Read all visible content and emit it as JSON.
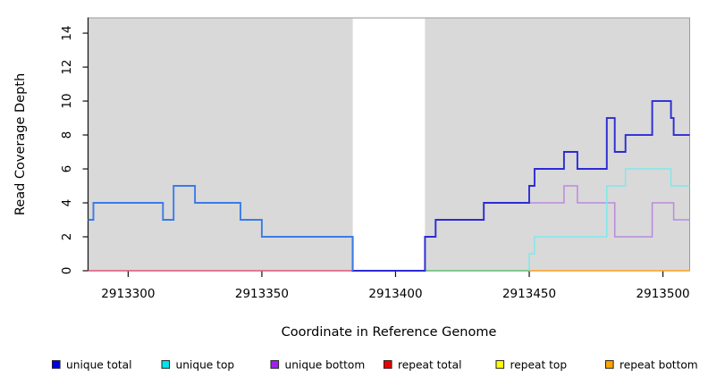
{
  "chart_data": {
    "type": "line",
    "subtype": "step-coverage",
    "title": "",
    "xlabel": "Coordinate in Reference Genome",
    "ylabel": "Read Coverage Depth",
    "xlim": [
      2913285,
      2913510
    ],
    "ylim": [
      0,
      14.9
    ],
    "xticks": [
      2913300,
      2913350,
      2913400,
      2913450,
      2913500
    ],
    "yticks": [
      0,
      2,
      4,
      6,
      8,
      10,
      12,
      14
    ],
    "grid": false,
    "plot_bg": "#d9d9d9",
    "plot_border_color": "#9a9a9a",
    "masked_region": {
      "start": 2913384,
      "end": 2913411,
      "color": "#ffffff"
    },
    "series": [
      {
        "name": "unique total",
        "legend_color": "#0000ee",
        "line_color": "#2b2bd5",
        "line_color_left_of_split": "#3a7be8",
        "color_split_x": 2913384,
        "x_start": 2913285,
        "v_start": 3,
        "x_end": 2913510,
        "steps": [
          [
            2913287,
            4
          ],
          [
            2913313,
            3
          ],
          [
            2913317,
            5
          ],
          [
            2913325,
            4
          ],
          [
            2913342,
            3
          ],
          [
            2913350,
            2
          ],
          [
            2913384,
            0
          ],
          [
            2913411,
            2
          ],
          [
            2913415,
            3
          ],
          [
            2913433,
            4
          ],
          [
            2913450,
            5
          ],
          [
            2913452,
            6
          ],
          [
            2913463,
            7
          ],
          [
            2913468,
            6
          ],
          [
            2913479,
            9
          ],
          [
            2913482,
            7
          ],
          [
            2913486,
            8
          ],
          [
            2913496,
            10
          ],
          [
            2913503,
            9
          ],
          [
            2913504,
            8
          ]
        ]
      },
      {
        "name": "unique top",
        "legend_color": "#00e5ee",
        "line_color": "#7de9ec",
        "x_start": 2913450,
        "v_start": 0,
        "x_end": 2913510,
        "steps": [
          [
            2913450,
            1
          ],
          [
            2913452,
            2
          ],
          [
            2913479,
            5
          ],
          [
            2913486,
            6
          ],
          [
            2913503,
            5
          ]
        ]
      },
      {
        "name": "unique bottom",
        "legend_color": "#a020f0",
        "line_color": "#b98ade",
        "x_start": 2913411,
        "v_start": 0,
        "x_end": 2913510,
        "steps": [
          [
            2913411,
            2
          ],
          [
            2913415,
            3
          ],
          [
            2913433,
            4
          ],
          [
            2913463,
            5
          ],
          [
            2913468,
            4
          ],
          [
            2913482,
            2
          ],
          [
            2913496,
            4
          ],
          [
            2913504,
            3
          ]
        ]
      },
      {
        "name": "repeat total",
        "legend_color": "#ee0000",
        "line_color": "#dd5577",
        "x_start": 2913285,
        "v_start": 0,
        "x_end": 2913384,
        "steps": []
      },
      {
        "name": "repeat top",
        "legend_color": "#ffff00",
        "line_color": "#ffff00",
        "x_start": 2913285,
        "v_start": 0,
        "x_end": 2913510,
        "steps": []
      },
      {
        "name": "repeat bottom",
        "legend_color": "#ffa500",
        "line_color": "#ff9d1e",
        "x_start": 2913450,
        "v_start": 0,
        "x_end": 2913510,
        "steps": []
      }
    ],
    "zero_line_segments": [
      {
        "from": 2913285,
        "to": 2913384,
        "color": "#dd5577"
      },
      {
        "from": 2913411,
        "to": 2913450,
        "color": "#61bd72"
      },
      {
        "from": 2913450,
        "to": 2913510,
        "color": "#ff9d1e"
      }
    ],
    "legend": [
      {
        "label": "unique total",
        "color": "#0000ee"
      },
      {
        "label": "unique top",
        "color": "#00e5ee"
      },
      {
        "label": "unique bottom",
        "color": "#a020f0"
      },
      {
        "label": "repeat total",
        "color": "#ee0000"
      },
      {
        "label": "repeat top",
        "color": "#ffff00"
      },
      {
        "label": "repeat bottom",
        "color": "#ffa500"
      }
    ],
    "legend_position": "bottom"
  }
}
